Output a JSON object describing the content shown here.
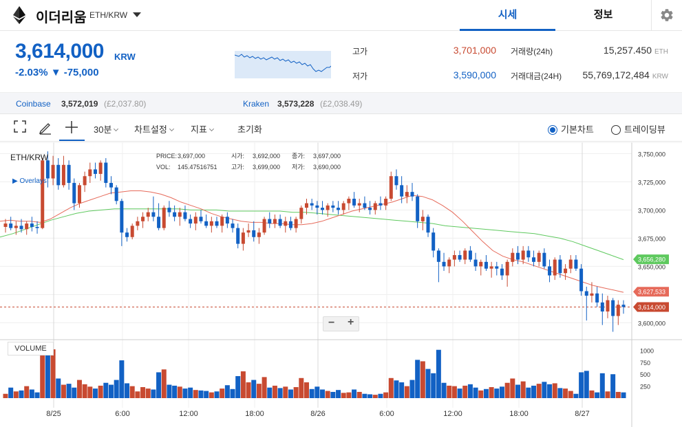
{
  "header": {
    "coin_name": "이더리움",
    "pair": "ETH/KRW",
    "tab_quote": "시세",
    "tab_info": "정보"
  },
  "price": {
    "current": "3,614,000",
    "unit": "KRW",
    "change": "-2.03% ▼ -75,000"
  },
  "stats": {
    "high_label": "고가",
    "high_value": "3,701,000",
    "low_label": "저가",
    "low_value": "3,590,000",
    "volume_label": "거래량(24h)",
    "volume_value": "15,257.450",
    "volume_unit": "ETH",
    "amount_label": "거래대금(24H)",
    "amount_value": "55,769,172,484",
    "amount_unit": "KRW"
  },
  "exchanges": [
    {
      "name": "Coinbase",
      "price": "3,572,019",
      "gbp": "(£2,037.80)"
    },
    {
      "name": "Kraken",
      "price": "3,573,228",
      "gbp": "(£2,038.49)"
    }
  ],
  "toolbar": {
    "interval": "30분",
    "chart_settings": "차트설정",
    "indicators": "지표",
    "reset": "초기화",
    "basic_chart": "기본차트",
    "tradingview": "트레이딩뷰"
  },
  "chart": {
    "pair": "ETH/KRW",
    "overlays": "Overlays",
    "volume_label": "VOLUME",
    "info": {
      "price_label": "PRICE:",
      "price": "3,697,000",
      "open_label": "시가:",
      "open": "3,692,000",
      "close_label": "종가:",
      "close": "3,697,000",
      "vol_label": "VOL:",
      "vol": "145.47516751",
      "high_label": "고가:",
      "high": "3,699,000",
      "low_label": "저가:",
      "low": "3,690,000"
    },
    "zoom_out": "−",
    "zoom_in": "+"
  },
  "colors": {
    "up": "#c84a31",
    "down": "#1261c4",
    "ma_short": "#e66a5a",
    "ma_long": "#5ec95e",
    "accent": "#1261c4"
  },
  "chart_data": {
    "type": "candlestick",
    "y_ticks": [
      "3,750,000",
      "3,725,000",
      "3,700,000",
      "3,675,000",
      "3,650,000",
      "3,600,000"
    ],
    "ylim": [
      3585000,
      3760000
    ],
    "x_ticks": [
      "8/25",
      "6:00",
      "12:00",
      "18:00",
      "8/26",
      "6:00",
      "12:00",
      "18:00",
      "8/27"
    ],
    "vol_ticks": [
      "1000",
      "750",
      "500",
      "250"
    ],
    "price_tags": [
      {
        "label": "3,656,280",
        "value": 3656280,
        "color": "#5ec95e"
      },
      {
        "label": "3,627,533",
        "value": 3627533,
        "color": "#e66a5a"
      },
      {
        "label": "3,614,000",
        "value": 3614000,
        "color": "#c84a31"
      }
    ],
    "candles": [
      {
        "o": 3685000,
        "h": 3692000,
        "l": 3680000,
        "c": 3688000,
        "v": 90
      },
      {
        "o": 3688000,
        "h": 3694000,
        "l": 3682000,
        "c": 3684000,
        "v": 220
      },
      {
        "o": 3684000,
        "h": 3690000,
        "l": 3678000,
        "c": 3686000,
        "v": 140
      },
      {
        "o": 3686000,
        "h": 3692000,
        "l": 3680000,
        "c": 3683000,
        "v": 160
      },
      {
        "o": 3683000,
        "h": 3690000,
        "l": 3678000,
        "c": 3688000,
        "v": 250
      },
      {
        "o": 3688000,
        "h": 3694000,
        "l": 3681000,
        "c": 3685000,
        "v": 180
      },
      {
        "o": 3685000,
        "h": 3690000,
        "l": 3679000,
        "c": 3684000,
        "v": 120
      },
      {
        "o": 3684000,
        "h": 3746000,
        "l": 3683000,
        "c": 3744000,
        "v": 1130
      },
      {
        "o": 3744000,
        "h": 3752000,
        "l": 3720000,
        "c": 3728000,
        "v": 950
      },
      {
        "o": 3728000,
        "h": 3748000,
        "l": 3722000,
        "c": 3740000,
        "v": 1020
      },
      {
        "o": 3740000,
        "h": 3746000,
        "l": 3718000,
        "c": 3722000,
        "v": 410
      },
      {
        "o": 3722000,
        "h": 3748000,
        "l": 3720000,
        "c": 3740000,
        "v": 280
      },
      {
        "o": 3740000,
        "h": 3744000,
        "l": 3718000,
        "c": 3724000,
        "v": 300
      },
      {
        "o": 3724000,
        "h": 3728000,
        "l": 3700000,
        "c": 3706000,
        "v": 220
      },
      {
        "o": 3706000,
        "h": 3724000,
        "l": 3702000,
        "c": 3722000,
        "v": 380
      },
      {
        "o": 3722000,
        "h": 3734000,
        "l": 3716000,
        "c": 3730000,
        "v": 290
      },
      {
        "o": 3730000,
        "h": 3742000,
        "l": 3724000,
        "c": 3736000,
        "v": 240
      },
      {
        "o": 3736000,
        "h": 3742000,
        "l": 3728000,
        "c": 3732000,
        "v": 200
      },
      {
        "o": 3732000,
        "h": 3744000,
        "l": 3726000,
        "c": 3742000,
        "v": 260
      },
      {
        "o": 3742000,
        "h": 3746000,
        "l": 3720000,
        "c": 3724000,
        "v": 320
      },
      {
        "o": 3724000,
        "h": 3730000,
        "l": 3714000,
        "c": 3720000,
        "v": 280
      },
      {
        "o": 3720000,
        "h": 3722000,
        "l": 3705000,
        "c": 3708000,
        "v": 380
      },
      {
        "o": 3708000,
        "h": 3710000,
        "l": 3668000,
        "c": 3680000,
        "v": 790
      },
      {
        "o": 3680000,
        "h": 3684000,
        "l": 3672000,
        "c": 3676000,
        "v": 310
      },
      {
        "o": 3676000,
        "h": 3688000,
        "l": 3674000,
        "c": 3686000,
        "v": 250
      },
      {
        "o": 3686000,
        "h": 3694000,
        "l": 3682000,
        "c": 3690000,
        "v": 140
      },
      {
        "o": 3690000,
        "h": 3698000,
        "l": 3684000,
        "c": 3694000,
        "v": 230
      },
      {
        "o": 3694000,
        "h": 3702000,
        "l": 3690000,
        "c": 3698000,
        "v": 200
      },
      {
        "o": 3698000,
        "h": 3712000,
        "l": 3690000,
        "c": 3694000,
        "v": 180
      },
      {
        "o": 3694000,
        "h": 3706000,
        "l": 3682000,
        "c": 3684000,
        "v": 540
      },
      {
        "o": 3684000,
        "h": 3704000,
        "l": 3682000,
        "c": 3702000,
        "v": 600
      },
      {
        "o": 3702000,
        "h": 3708000,
        "l": 3694000,
        "c": 3698000,
        "v": 280
      },
      {
        "o": 3698000,
        "h": 3704000,
        "l": 3690000,
        "c": 3694000,
        "v": 260
      },
      {
        "o": 3694000,
        "h": 3702000,
        "l": 3686000,
        "c": 3698000,
        "v": 240
      },
      {
        "o": 3698000,
        "h": 3704000,
        "l": 3690000,
        "c": 3692000,
        "v": 200
      },
      {
        "o": 3692000,
        "h": 3696000,
        "l": 3684000,
        "c": 3688000,
        "v": 220
      },
      {
        "o": 3688000,
        "h": 3698000,
        "l": 3682000,
        "c": 3694000,
        "v": 170
      },
      {
        "o": 3694000,
        "h": 3700000,
        "l": 3688000,
        "c": 3690000,
        "v": 160
      },
      {
        "o": 3690000,
        "h": 3696000,
        "l": 3684000,
        "c": 3686000,
        "v": 150
      },
      {
        "o": 3686000,
        "h": 3694000,
        "l": 3680000,
        "c": 3690000,
        "v": 120
      },
      {
        "o": 3690000,
        "h": 3694000,
        "l": 3684000,
        "c": 3686000,
        "v": 140
      },
      {
        "o": 3686000,
        "h": 3696000,
        "l": 3680000,
        "c": 3694000,
        "v": 200
      },
      {
        "o": 3694000,
        "h": 3698000,
        "l": 3684000,
        "c": 3688000,
        "v": 270
      },
      {
        "o": 3688000,
        "h": 3692000,
        "l": 3680000,
        "c": 3684000,
        "v": 190
      },
      {
        "o": 3684000,
        "h": 3688000,
        "l": 3666000,
        "c": 3670000,
        "v": 460
      },
      {
        "o": 3670000,
        "h": 3684000,
        "l": 3664000,
        "c": 3680000,
        "v": 560
      },
      {
        "o": 3680000,
        "h": 3688000,
        "l": 3676000,
        "c": 3682000,
        "v": 330
      },
      {
        "o": 3682000,
        "h": 3690000,
        "l": 3672000,
        "c": 3676000,
        "v": 380
      },
      {
        "o": 3676000,
        "h": 3684000,
        "l": 3670000,
        "c": 3680000,
        "v": 300
      },
      {
        "o": 3680000,
        "h": 3694000,
        "l": 3678000,
        "c": 3692000,
        "v": 440
      },
      {
        "o": 3692000,
        "h": 3698000,
        "l": 3684000,
        "c": 3688000,
        "v": 220
      },
      {
        "o": 3688000,
        "h": 3696000,
        "l": 3684000,
        "c": 3692000,
        "v": 260
      },
      {
        "o": 3692000,
        "h": 3696000,
        "l": 3684000,
        "c": 3686000,
        "v": 210
      },
      {
        "o": 3686000,
        "h": 3694000,
        "l": 3680000,
        "c": 3690000,
        "v": 240
      },
      {
        "o": 3690000,
        "h": 3694000,
        "l": 3682000,
        "c": 3684000,
        "v": 180
      },
      {
        "o": 3684000,
        "h": 3694000,
        "l": 3680000,
        "c": 3692000,
        "v": 230
      },
      {
        "o": 3692000,
        "h": 3704000,
        "l": 3688000,
        "c": 3702000,
        "v": 420
      },
      {
        "o": 3702000,
        "h": 3710000,
        "l": 3696000,
        "c": 3706000,
        "v": 330
      },
      {
        "o": 3706000,
        "h": 3710000,
        "l": 3700000,
        "c": 3704000,
        "v": 190
      },
      {
        "o": 3704000,
        "h": 3708000,
        "l": 3696000,
        "c": 3702000,
        "v": 240
      },
      {
        "o": 3702000,
        "h": 3708000,
        "l": 3696000,
        "c": 3700000,
        "v": 180
      },
      {
        "o": 3700000,
        "h": 3706000,
        "l": 3694000,
        "c": 3704000,
        "v": 150
      },
      {
        "o": 3704000,
        "h": 3708000,
        "l": 3698000,
        "c": 3702000,
        "v": 130
      },
      {
        "o": 3702000,
        "h": 3708000,
        "l": 3696000,
        "c": 3700000,
        "v": 170
      },
      {
        "o": 3700000,
        "h": 3708000,
        "l": 3696000,
        "c": 3706000,
        "v": 110
      },
      {
        "o": 3706000,
        "h": 3712000,
        "l": 3700000,
        "c": 3710000,
        "v": 120
      },
      {
        "o": 3710000,
        "h": 3716000,
        "l": 3702000,
        "c": 3704000,
        "v": 180
      },
      {
        "o": 3704000,
        "h": 3710000,
        "l": 3698000,
        "c": 3706000,
        "v": 130
      },
      {
        "o": 3706000,
        "h": 3712000,
        "l": 3700000,
        "c": 3702000,
        "v": 90
      },
      {
        "o": 3702000,
        "h": 3708000,
        "l": 3696000,
        "c": 3700000,
        "v": 80
      },
      {
        "o": 3700000,
        "h": 3708000,
        "l": 3696000,
        "c": 3706000,
        "v": 70
      },
      {
        "o": 3706000,
        "h": 3712000,
        "l": 3700000,
        "c": 3704000,
        "v": 90
      },
      {
        "o": 3704000,
        "h": 3712000,
        "l": 3700000,
        "c": 3710000,
        "v": 120
      },
      {
        "o": 3710000,
        "h": 3734000,
        "l": 3708000,
        "c": 3730000,
        "v": 420
      },
      {
        "o": 3730000,
        "h": 3736000,
        "l": 3718000,
        "c": 3722000,
        "v": 370
      },
      {
        "o": 3722000,
        "h": 3730000,
        "l": 3706000,
        "c": 3712000,
        "v": 330
      },
      {
        "o": 3712000,
        "h": 3722000,
        "l": 3706000,
        "c": 3716000,
        "v": 250
      },
      {
        "o": 3716000,
        "h": 3724000,
        "l": 3708000,
        "c": 3712000,
        "v": 380
      },
      {
        "o": 3712000,
        "h": 3714000,
        "l": 3684000,
        "c": 3690000,
        "v": 800
      },
      {
        "o": 3690000,
        "h": 3700000,
        "l": 3682000,
        "c": 3694000,
        "v": 770
      },
      {
        "o": 3694000,
        "h": 3696000,
        "l": 3676000,
        "c": 3680000,
        "v": 610
      },
      {
        "o": 3680000,
        "h": 3684000,
        "l": 3658000,
        "c": 3664000,
        "v": 520
      },
      {
        "o": 3664000,
        "h": 3666000,
        "l": 3636000,
        "c": 3654000,
        "v": 1010
      },
      {
        "o": 3654000,
        "h": 3662000,
        "l": 3646000,
        "c": 3650000,
        "v": 320
      },
      {
        "o": 3650000,
        "h": 3658000,
        "l": 3644000,
        "c": 3656000,
        "v": 260
      },
      {
        "o": 3656000,
        "h": 3664000,
        "l": 3650000,
        "c": 3660000,
        "v": 250
      },
      {
        "o": 3660000,
        "h": 3664000,
        "l": 3654000,
        "c": 3656000,
        "v": 200
      },
      {
        "o": 3656000,
        "h": 3666000,
        "l": 3652000,
        "c": 3664000,
        "v": 260
      },
      {
        "o": 3664000,
        "h": 3668000,
        "l": 3654000,
        "c": 3656000,
        "v": 290
      },
      {
        "o": 3656000,
        "h": 3662000,
        "l": 3646000,
        "c": 3650000,
        "v": 220
      },
      {
        "o": 3650000,
        "h": 3656000,
        "l": 3642000,
        "c": 3654000,
        "v": 160
      },
      {
        "o": 3654000,
        "h": 3660000,
        "l": 3646000,
        "c": 3648000,
        "v": 190
      },
      {
        "o": 3648000,
        "h": 3654000,
        "l": 3640000,
        "c": 3650000,
        "v": 230
      },
      {
        "o": 3650000,
        "h": 3654000,
        "l": 3642000,
        "c": 3648000,
        "v": 200
      },
      {
        "o": 3648000,
        "h": 3652000,
        "l": 3638000,
        "c": 3642000,
        "v": 240
      },
      {
        "o": 3642000,
        "h": 3656000,
        "l": 3632000,
        "c": 3654000,
        "v": 320
      },
      {
        "o": 3654000,
        "h": 3666000,
        "l": 3650000,
        "c": 3662000,
        "v": 410
      },
      {
        "o": 3662000,
        "h": 3668000,
        "l": 3652000,
        "c": 3656000,
        "v": 280
      },
      {
        "o": 3656000,
        "h": 3668000,
        "l": 3652000,
        "c": 3664000,
        "v": 350
      },
      {
        "o": 3664000,
        "h": 3668000,
        "l": 3654000,
        "c": 3658000,
        "v": 220
      },
      {
        "o": 3658000,
        "h": 3664000,
        "l": 3650000,
        "c": 3654000,
        "v": 260
      },
      {
        "o": 3654000,
        "h": 3664000,
        "l": 3650000,
        "c": 3662000,
        "v": 300
      },
      {
        "o": 3662000,
        "h": 3666000,
        "l": 3648000,
        "c": 3650000,
        "v": 340
      },
      {
        "o": 3650000,
        "h": 3656000,
        "l": 3636000,
        "c": 3642000,
        "v": 290
      },
      {
        "o": 3642000,
        "h": 3658000,
        "l": 3638000,
        "c": 3656000,
        "v": 310
      },
      {
        "o": 3656000,
        "h": 3660000,
        "l": 3640000,
        "c": 3644000,
        "v": 210
      },
      {
        "o": 3644000,
        "h": 3652000,
        "l": 3638000,
        "c": 3648000,
        "v": 200
      },
      {
        "o": 3648000,
        "h": 3660000,
        "l": 3644000,
        "c": 3656000,
        "v": 150
      },
      {
        "o": 3656000,
        "h": 3660000,
        "l": 3646000,
        "c": 3648000,
        "v": 90
      },
      {
        "o": 3648000,
        "h": 3652000,
        "l": 3624000,
        "c": 3628000,
        "v": 540
      },
      {
        "o": 3628000,
        "h": 3632000,
        "l": 3602000,
        "c": 3624000,
        "v": 570
      },
      {
        "o": 3624000,
        "h": 3636000,
        "l": 3618000,
        "c": 3626000,
        "v": 160
      },
      {
        "o": 3626000,
        "h": 3632000,
        "l": 3614000,
        "c": 3618000,
        "v": 120
      },
      {
        "o": 3618000,
        "h": 3626000,
        "l": 3598000,
        "c": 3610000,
        "v": 520
      },
      {
        "o": 3610000,
        "h": 3624000,
        "l": 3604000,
        "c": 3620000,
        "v": 140
      },
      {
        "o": 3620000,
        "h": 3622000,
        "l": 3592000,
        "c": 3606000,
        "v": 500
      },
      {
        "o": 3606000,
        "h": 3620000,
        "l": 3598000,
        "c": 3616000,
        "v": 130
      },
      {
        "o": 3616000,
        "h": 3620000,
        "l": 3608000,
        "c": 3614000,
        "v": 120
      }
    ],
    "ma_short": [
      3690000,
      3691000,
      3690000,
      3690000,
      3689000,
      3692000,
      3697000,
      3702000,
      3706000,
      3709000,
      3712000,
      3715000,
      3716000,
      3717000,
      3717000,
      3716000,
      3714000,
      3711000,
      3707000,
      3704000,
      3701000,
      3697000,
      3694000,
      3692000,
      3690000,
      3689000,
      3689000,
      3688000,
      3688000,
      3687000,
      3687000,
      3688000,
      3690000,
      3693000,
      3696000,
      3699000,
      3701000,
      3703000,
      3705000,
      3707000,
      3710000,
      3713000,
      3712000,
      3709000,
      3704000,
      3698000,
      3690000,
      3681000,
      3672000,
      3664000,
      3659000,
      3656000,
      3654000,
      3651000,
      3648000,
      3645000,
      3642000,
      3639000,
      3636000,
      3633000,
      3631000,
      3629000,
      3627000
    ],
    "ma_long": [
      3676000,
      3679000,
      3683000,
      3687000,
      3691000,
      3694000,
      3697000,
      3699000,
      3700000,
      3701000,
      3701000,
      3701000,
      3701000,
      3701000,
      3701000,
      3700000,
      3700000,
      3700000,
      3699000,
      3699000,
      3699000,
      3699000,
      3699000,
      3698000,
      3698000,
      3697000,
      3696000,
      3695000,
      3694000,
      3693000,
      3692000,
      3691000,
      3690000,
      3689000,
      3688000,
      3686000,
      3685000,
      3684000,
      3683000,
      3682000,
      3681000,
      3680000,
      3679000,
      3677000,
      3675000,
      3672000,
      3668000,
      3664000,
      3660000,
      3656000
    ]
  }
}
